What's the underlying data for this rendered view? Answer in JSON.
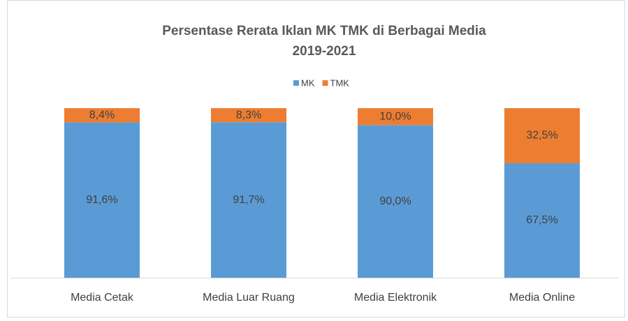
{
  "chart_data": {
    "type": "stacked_bar",
    "title": "Persentase Rerata Iklan MK TMK di Berbagai Media",
    "subtitle": "2019-2021",
    "categories": [
      "Media Cetak",
      "Media Luar Ruang",
      "Media Elektronik",
      "Media Online"
    ],
    "series": [
      {
        "name": "MK",
        "color": "#5b9bd5",
        "values": [
          91.6,
          91.7,
          90.0,
          67.5
        ],
        "value_labels": [
          "91,6%",
          "91,7%",
          "90,0%",
          "67,5%"
        ]
      },
      {
        "name": "TMK",
        "color": "#ed7d31",
        "values": [
          8.4,
          8.3,
          10.0,
          32.5
        ],
        "value_labels": [
          "8,4%",
          "8,3%",
          "10,0%",
          "32,5%"
        ]
      }
    ],
    "ylim": [
      0,
      100
    ],
    "legend": "top"
  }
}
